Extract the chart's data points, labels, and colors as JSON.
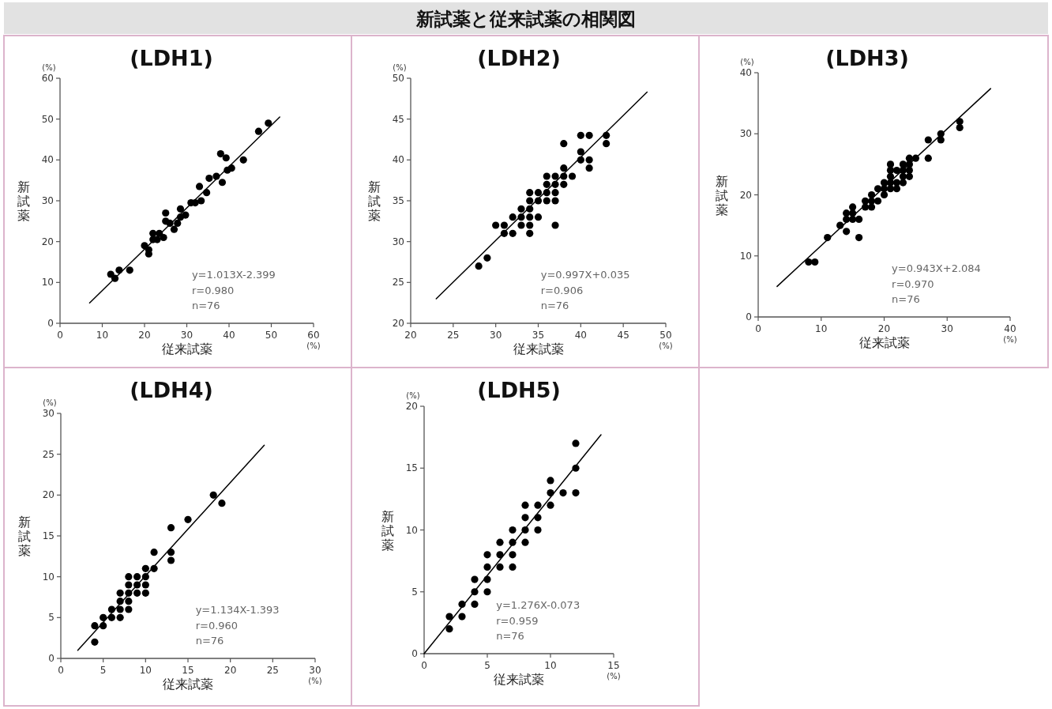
{
  "chart_data": [
    {
      "type": "other",
      "title": "新試薬と従来試薬の相関図"
    },
    {
      "type": "scatter",
      "title": "(LDH1)",
      "xlabel": "従来試薬",
      "ylabel": "新試薬",
      "annotations": [
        "y=1.013X-2.399",
        "r=0.980",
        "n=76",
        "(%)",
        "(%)"
      ],
      "xlim": [
        0,
        60
      ],
      "ylim": [
        0,
        60
      ],
      "xticks": [
        0,
        10,
        20,
        30,
        40,
        50,
        60
      ],
      "yticks": [
        0,
        10,
        20,
        30,
        40,
        50,
        60
      ],
      "series": [
        {
          "type": "scatter",
          "marker": "circle",
          "color": "#000000",
          "x": [
            12,
            13,
            14,
            16.5,
            20,
            21,
            21,
            22,
            23,
            23.5,
            24.5,
            22,
            25,
            25,
            27,
            26,
            27.8,
            28.5,
            28.5,
            29.7,
            31,
            32,
            33.4,
            33,
            34.7,
            35.3,
            37,
            38.4,
            38,
            39.3,
            39.6,
            40.6,
            43.4,
            47,
            49.3
          ],
          "values": [
            12,
            11,
            13,
            13,
            19,
            17,
            18,
            22,
            20.5,
            22,
            21,
            20.5,
            27,
            25,
            23,
            24.5,
            24.5,
            28,
            26,
            26.5,
            29.5,
            29.5,
            30,
            33.5,
            32,
            35.5,
            36,
            34.5,
            41.5,
            40.5,
            37.5,
            38,
            40,
            47,
            49
          ]
        },
        {
          "type": "line",
          "color": "#000000",
          "x": [
            7,
            52
          ],
          "values": [
            5,
            50.5
          ]
        }
      ]
    },
    {
      "type": "scatter",
      "title": "(LDH2)",
      "xlabel": "従来試薬",
      "ylabel": "新試薬",
      "annotations": [
        "y=0.997X+0.035",
        "r=0.906",
        "n=76",
        "(%)",
        "(%)"
      ],
      "xlim": [
        20,
        50
      ],
      "ylim": [
        20,
        50
      ],
      "xticks": [
        20,
        25,
        30,
        35,
        40,
        45,
        50
      ],
      "yticks": [
        20,
        25,
        30,
        35,
        40,
        45,
        50
      ],
      "series": [
        {
          "type": "scatter",
          "marker": "circle",
          "color": "#000000",
          "x": [
            28,
            29,
            30,
            31,
            31,
            32,
            32,
            33,
            33,
            33,
            34,
            34,
            34,
            34,
            34,
            34,
            35,
            35,
            35,
            36,
            36,
            36,
            36,
            37,
            37,
            37,
            37,
            37,
            38,
            38,
            38,
            38,
            39,
            40,
            40,
            40,
            41,
            41,
            41,
            43,
            43
          ],
          "values": [
            27,
            28,
            32,
            32,
            31,
            33,
            31,
            34,
            33,
            32,
            36,
            35,
            34,
            33,
            32,
            31,
            36,
            35,
            33,
            38,
            37,
            36,
            35,
            38,
            37,
            36,
            35,
            32,
            42,
            39,
            38,
            37,
            38,
            43,
            41,
            40,
            43,
            40,
            39,
            43,
            42
          ]
        },
        {
          "type": "line",
          "color": "#000000",
          "x": [
            23,
            47.8
          ],
          "values": [
            23,
            48.3
          ]
        }
      ]
    },
    {
      "type": "scatter",
      "title": "(LDH3)",
      "xlabel": "従来試薬",
      "ylabel": "新試薬",
      "annotations": [
        "y=0.943X+2.084",
        "r=0.970",
        "n=76",
        "(%)",
        "(%)"
      ],
      "xlim": [
        0,
        40
      ],
      "ylim": [
        0,
        40
      ],
      "xticks": [
        0,
        10,
        20,
        30,
        40
      ],
      "yticks": [
        0,
        10,
        20,
        30,
        40
      ],
      "series": [
        {
          "type": "scatter",
          "marker": "circle",
          "color": "#000000",
          "x": [
            8,
            9,
            11,
            13,
            14,
            14,
            14,
            15,
            15,
            15,
            16,
            16,
            17,
            17,
            18,
            18,
            18,
            19,
            19,
            20,
            20,
            20,
            21,
            21,
            21,
            21,
            21,
            22,
            22,
            22,
            23,
            23,
            23,
            23,
            24,
            24,
            24,
            24,
            25,
            27,
            27,
            29,
            29,
            32,
            32
          ],
          "values": [
            9,
            9,
            13,
            15,
            14,
            16,
            17,
            18,
            17,
            16,
            16,
            13,
            18,
            19,
            18,
            20,
            19,
            21,
            19,
            22,
            21,
            20,
            25,
            24,
            23,
            22,
            21,
            24,
            22,
            21,
            25,
            24,
            23,
            22,
            26,
            25,
            24,
            23,
            26,
            29,
            26,
            30,
            29,
            32,
            31
          ]
        },
        {
          "type": "line",
          "color": "#000000",
          "x": [
            3,
            36.9
          ],
          "values": [
            5,
            37.4
          ]
        }
      ]
    },
    {
      "type": "scatter",
      "title": "(LDH4)",
      "xlabel": "従来試薬",
      "ylabel": "新試薬",
      "annotations": [
        "y=1.134X-1.393",
        "r=0.960",
        "n=76",
        "(%)",
        "(%)"
      ],
      "xlim": [
        0,
        30
      ],
      "ylim": [
        0,
        30
      ],
      "xticks": [
        0,
        5,
        10,
        15,
        20,
        25,
        30
      ],
      "yticks": [
        0,
        5,
        10,
        15,
        20,
        25,
        30
      ],
      "series": [
        {
          "type": "scatter",
          "marker": "circle",
          "color": "#000000",
          "x": [
            4,
            4,
            5,
            5,
            6,
            6,
            7,
            7,
            7,
            7,
            8,
            8,
            8,
            8,
            8,
            9,
            9,
            9,
            10,
            10,
            10,
            10,
            11,
            11,
            13,
            13,
            13,
            15,
            18,
            19
          ],
          "values": [
            2,
            4,
            4,
            5,
            5,
            6,
            5,
            6,
            7,
            8,
            6,
            7,
            8,
            9,
            10,
            8,
            9,
            10,
            8,
            9,
            10,
            11,
            11,
            13,
            12,
            13,
            16,
            17,
            20,
            19
          ]
        },
        {
          "type": "line",
          "color": "#000000",
          "x": [
            2,
            24
          ],
          "values": [
            1,
            26.1
          ]
        }
      ]
    },
    {
      "type": "scatter",
      "title": "(LDH5)",
      "xlabel": "従来試薬",
      "ylabel": "新試薬",
      "annotations": [
        "y=1.276X-0.073",
        "r=0.959",
        "n=76",
        "(%)",
        "(%)"
      ],
      "xlim": [
        0,
        15
      ],
      "ylim": [
        0,
        20
      ],
      "xticks": [
        0,
        5,
        10,
        15
      ],
      "yticks": [
        0,
        5,
        10,
        15,
        20
      ],
      "series": [
        {
          "type": "scatter",
          "marker": "circle",
          "color": "#000000",
          "x": [
            2,
            2,
            3,
            3,
            4,
            4,
            4,
            5,
            5,
            5,
            5,
            6,
            6,
            6,
            7,
            7,
            7,
            7,
            8,
            8,
            8,
            8,
            9,
            9,
            9,
            10,
            10,
            10,
            11,
            12,
            12,
            12
          ],
          "values": [
            2,
            3,
            3,
            4,
            4,
            5,
            6,
            5,
            6,
            7,
            8,
            7,
            8,
            9,
            7,
            8,
            9,
            10,
            9,
            10,
            11,
            12,
            10,
            11,
            12,
            12,
            13,
            14,
            13,
            13,
            15,
            17
          ]
        },
        {
          "type": "line",
          "color": "#000000",
          "x": [
            0,
            14
          ],
          "values": [
            0,
            17.7
          ]
        }
      ]
    }
  ]
}
